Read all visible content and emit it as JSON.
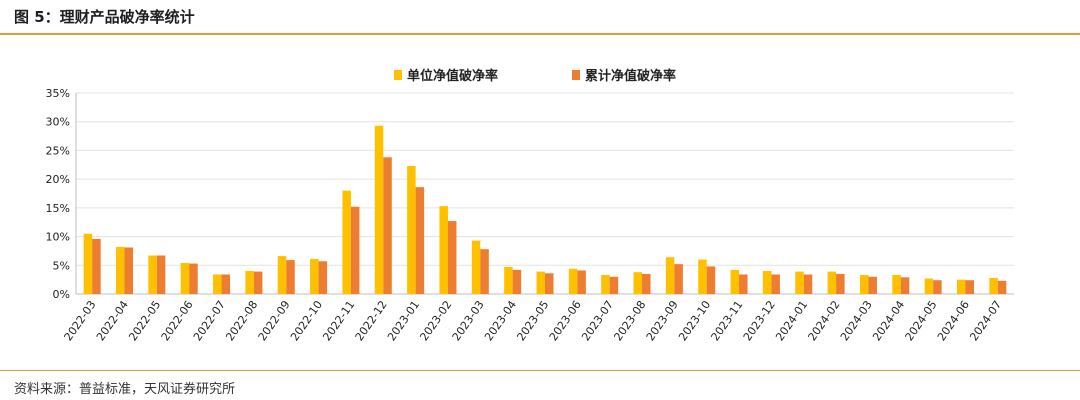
{
  "figure": {
    "title": "图 5：理财产品破净率统计",
    "source": "资料来源：普益标准，天风证券研究所"
  },
  "chart_data": {
    "type": "bar",
    "categories": [
      "2022-03",
      "2022-04",
      "2022-05",
      "2022-06",
      "2022-07",
      "2022-08",
      "2022-09",
      "2022-10",
      "2022-11",
      "2022-12",
      "2023-01",
      "2023-02",
      "2023-03",
      "2023-04",
      "2023-05",
      "2023-06",
      "2023-07",
      "2023-08",
      "2023-09",
      "2023-10",
      "2023-11",
      "2023-12",
      "2024-01",
      "2024-02",
      "2024-03",
      "2024-04",
      "2024-05",
      "2024-06",
      "2024-07"
    ],
    "series": [
      {
        "name": "单位净值破净率",
        "color": "#FFC000",
        "values": [
          10.5,
          8.2,
          6.7,
          5.4,
          3.4,
          4.0,
          6.6,
          6.1,
          18.0,
          29.3,
          22.3,
          15.3,
          9.3,
          4.7,
          3.9,
          4.4,
          3.3,
          3.8,
          6.4,
          6.0,
          4.2,
          4.0,
          3.9,
          3.9,
          3.3,
          3.3,
          2.7,
          2.5,
          2.8
        ]
      },
      {
        "name": "累计净值破净率",
        "color": "#ED7D31",
        "values": [
          9.6,
          8.1,
          6.7,
          5.3,
          3.4,
          3.9,
          5.9,
          5.7,
          15.2,
          23.8,
          18.6,
          12.7,
          7.8,
          4.2,
          3.6,
          4.1,
          3.0,
          3.5,
          5.2,
          4.8,
          3.4,
          3.4,
          3.4,
          3.5,
          3.0,
          2.9,
          2.4,
          2.4,
          2.3
        ]
      }
    ],
    "yticks": [
      "0%",
      "5%",
      "10%",
      "15%",
      "20%",
      "25%",
      "30%",
      "35%"
    ],
    "ylim": [
      0,
      35
    ],
    "grid": true,
    "legend": "top-center"
  }
}
